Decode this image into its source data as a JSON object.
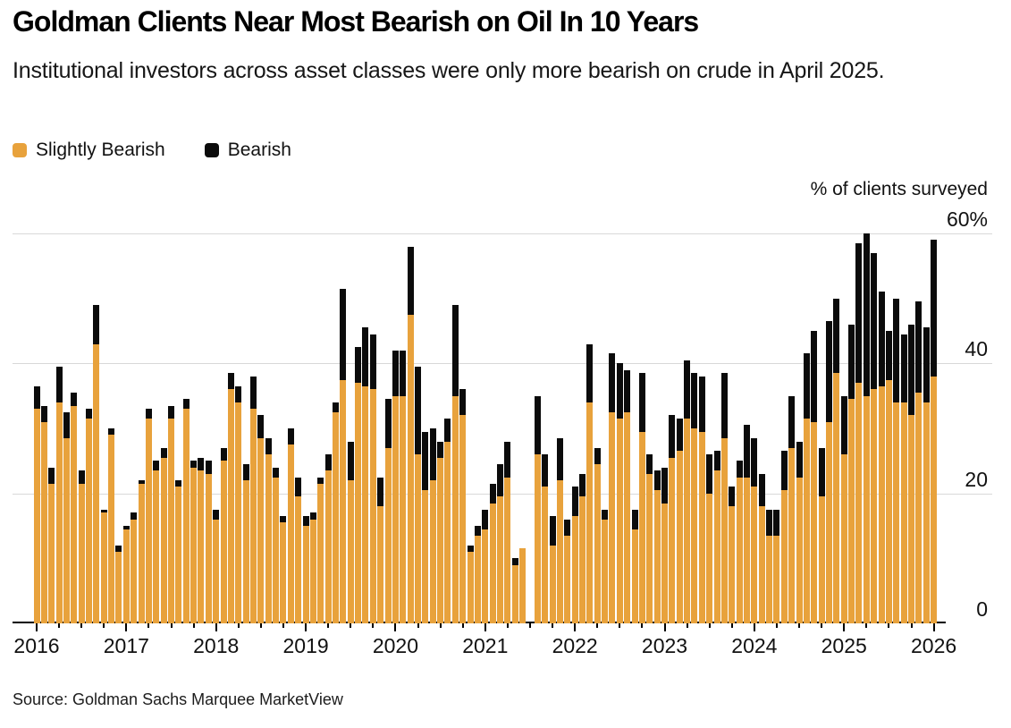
{
  "header": {
    "title": "Goldman Clients Near Most Bearish on Oil In 10 Years",
    "subtitle": "Institutional investors across asset classes were only more bearish on crude in April 2025."
  },
  "legend": [
    {
      "label": "Slightly Bearish",
      "color": "#E8A23C"
    },
    {
      "label": "Bearish",
      "color": "#0b0b0b"
    }
  ],
  "axis": {
    "unit_label": "% of clients surveyed",
    "y_ticks": [
      {
        "label": "60%",
        "value": 60
      },
      {
        "label": "40",
        "value": 40
      },
      {
        "label": "20",
        "value": 20
      },
      {
        "label": "0",
        "value": 0
      }
    ],
    "x_ticks": [
      {
        "label": "2016",
        "month": 0
      },
      {
        "label": "2017",
        "month": 12
      },
      {
        "label": "2018",
        "month": 24
      },
      {
        "label": "2019",
        "month": 36
      },
      {
        "label": "2020",
        "month": 48
      },
      {
        "label": "2021",
        "month": 60
      },
      {
        "label": "2022",
        "month": 72
      },
      {
        "label": "2023",
        "month": 84
      },
      {
        "label": "2024",
        "month": 96
      },
      {
        "label": "2025",
        "month": 108
      },
      {
        "label": "2026",
        "month": 120
      }
    ]
  },
  "source": "Source: Goldman Sachs Marquee MarketView",
  "chart_data": {
    "type": "bar",
    "stacked": true,
    "title": "Goldman Clients Near Most Bearish on Oil In 10 Years",
    "ylabel": "% of clients surveyed",
    "ylim": [
      0,
      60
    ],
    "grid": "horizontal",
    "legend_position": "top-left",
    "x_start": "2016-01",
    "x_end": "2026-01",
    "x_frequency": "monthly",
    "missing_months": [
      "2021-07"
    ],
    "notes": "Values estimated from pixel heights; null = no survey that month",
    "series": [
      {
        "name": "Slightly Bearish",
        "color": "#E8A23C",
        "values": [
          33,
          31,
          21.5,
          34,
          28.5,
          33.5,
          21.5,
          31.5,
          43,
          17,
          29,
          11,
          14.5,
          16,
          21.5,
          31.5,
          23.5,
          25.5,
          31.5,
          21,
          33,
          24,
          23.5,
          23,
          16,
          25,
          36,
          34,
          22,
          33,
          28.5,
          26,
          22.5,
          15.5,
          27.5,
          19.5,
          15,
          16,
          21.5,
          23.5,
          32.5,
          37.5,
          22,
          37,
          36.5,
          36,
          18,
          27,
          35,
          35,
          47.5,
          26,
          20.5,
          22,
          25.5,
          28,
          35,
          32,
          11,
          13.5,
          14.5,
          18.5,
          19.5,
          22.5,
          9,
          11.5,
          null,
          26,
          21,
          12,
          22,
          13.5,
          16.5,
          19.5,
          34,
          24.5,
          16,
          32.5,
          31.5,
          32.5,
          14.5,
          29.5,
          23,
          20.5,
          18.5,
          25.5,
          26.5,
          31.5,
          30,
          29.5,
          20,
          23.5,
          28.5,
          18,
          22.5,
          22.5,
          21,
          18,
          13.5,
          13.5,
          20.5,
          27,
          22.5,
          31.5,
          31,
          19.5,
          31,
          38.5,
          26,
          34.5,
          37,
          35,
          36,
          36.5,
          37.5,
          34,
          34,
          32,
          35.5,
          34,
          38
        ]
      },
      {
        "name": "Bearish",
        "color": "#0b0b0b",
        "values": [
          3.5,
          2.5,
          2.5,
          5.5,
          4,
          2,
          2,
          1.5,
          6,
          0.5,
          1,
          1,
          0.5,
          1,
          0.5,
          1.5,
          1.5,
          1.5,
          2,
          1,
          1.5,
          1,
          2,
          2,
          1.5,
          2,
          2.5,
          2.5,
          2.5,
          5,
          3.5,
          2.5,
          1.5,
          1,
          2.5,
          3,
          1.5,
          1,
          1,
          2.5,
          1.5,
          14,
          6,
          5.5,
          9,
          8.5,
          4.5,
          7.5,
          7,
          7,
          10.5,
          13.5,
          9,
          8,
          2.5,
          3.5,
          14,
          4,
          1,
          1.5,
          3,
          3,
          5,
          5.5,
          1,
          0,
          null,
          9,
          5,
          4.5,
          6.5,
          2.5,
          4.5,
          3.5,
          9,
          2.5,
          1.5,
          9,
          8.5,
          6.5,
          3,
          9,
          3,
          3,
          5.5,
          6.5,
          5,
          9,
          8.5,
          8.5,
          6,
          3,
          10,
          3,
          2.5,
          8,
          7.5,
          5,
          4,
          4,
          6,
          8,
          5.5,
          10,
          14,
          7.5,
          15.5,
          11.5,
          9,
          11.5,
          21.5,
          25,
          21,
          14.5,
          7.5,
          16,
          10.5,
          14,
          14,
          11.5,
          21
        ]
      }
    ]
  }
}
